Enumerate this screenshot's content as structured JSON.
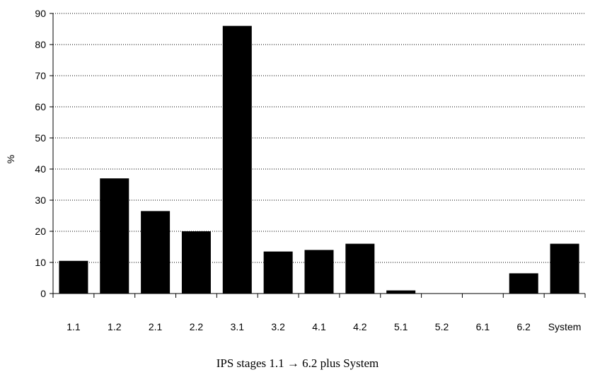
{
  "chart_data": {
    "type": "bar",
    "categories": [
      "1.1",
      "1.2",
      "2.1",
      "2.2",
      "3.1",
      "3.2",
      "4.1",
      "4.2",
      "5.1",
      "5.2",
      "6.1",
      "6.2",
      "System"
    ],
    "values": [
      10.5,
      37,
      26.5,
      20,
      86,
      13.5,
      14,
      16,
      1,
      0,
      0,
      6.5,
      16
    ],
    "title": "",
    "xlabel": "IPS stages 1.1 → 6.2 plus System",
    "ylabel": "%",
    "ylim": [
      0,
      90
    ],
    "yticks": [
      "0",
      "10",
      "20",
      "30",
      "40",
      "50",
      "60",
      "70",
      "80",
      "90"
    ],
    "grid": true,
    "bar_color": "#000000"
  }
}
